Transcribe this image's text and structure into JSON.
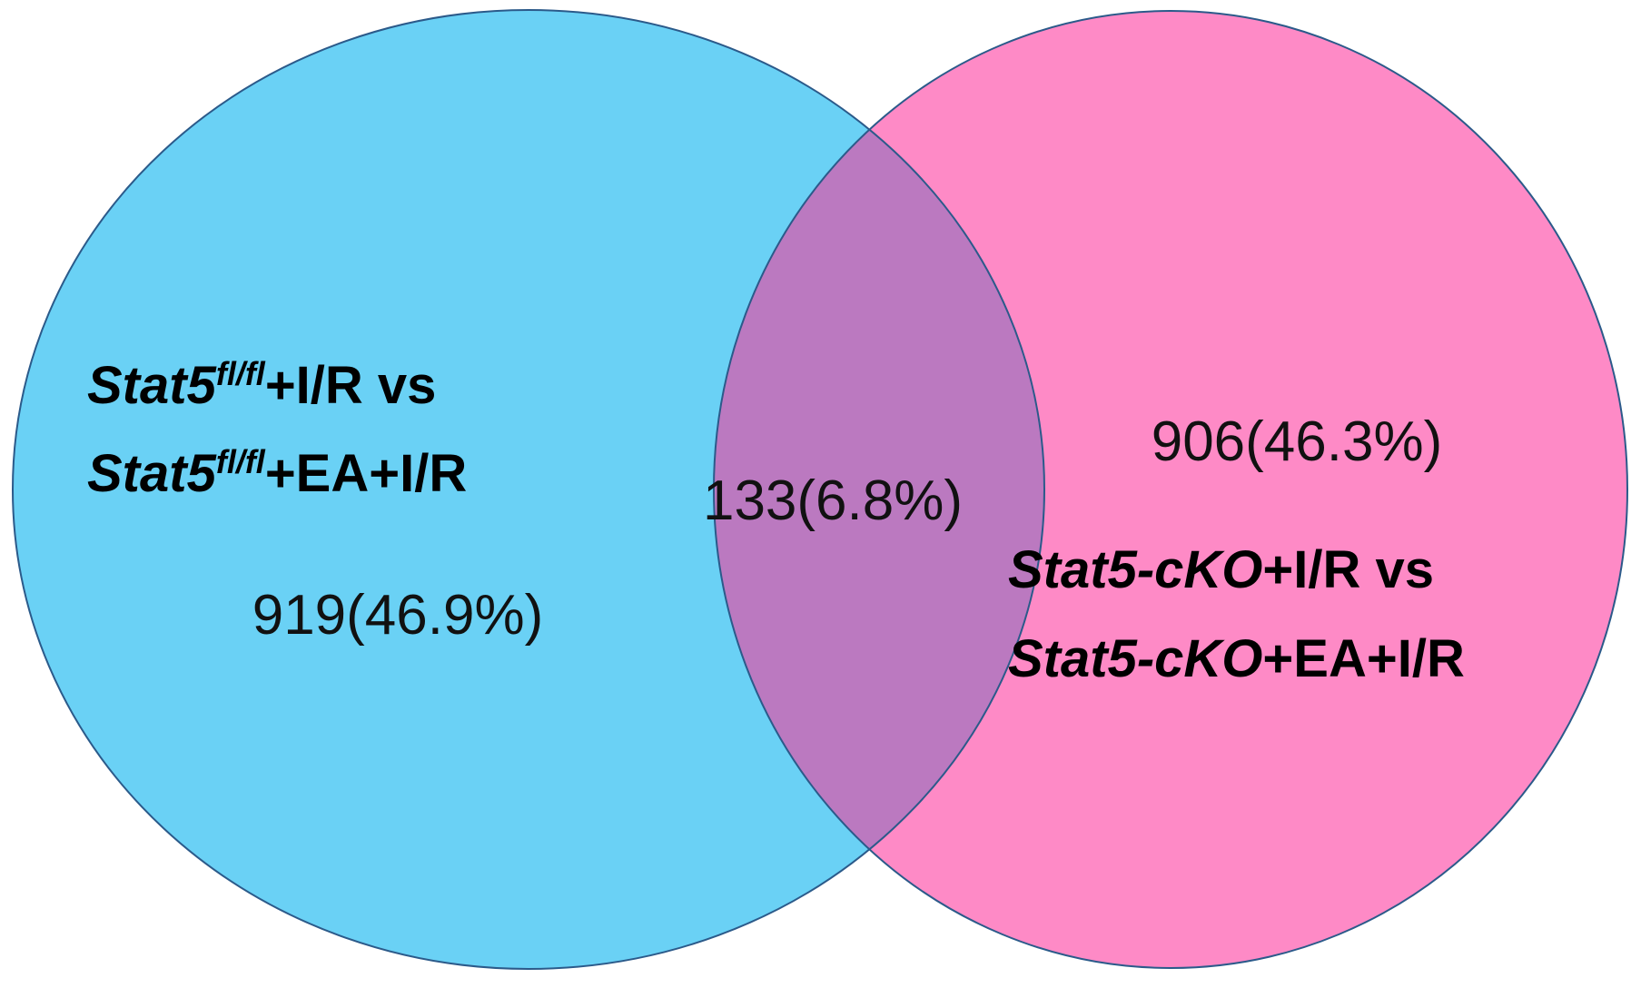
{
  "venn": {
    "sets": [
      {
        "id": "left",
        "color": "#6ad1f5",
        "stroke": "#2b5a8a",
        "label_line1": {
          "name": "Stat5",
          "sup": "fl/fl",
          "rest": "+I/R vs"
        },
        "label_line2": {
          "name": "Stat5",
          "sup": "fl/fl",
          "rest": "+EA+I/R"
        },
        "count": "919(46.9%)"
      },
      {
        "id": "right",
        "color": "#fe8ac6",
        "stroke": "#2b5a8a",
        "label_line1": {
          "name": "Stat5-cKO",
          "rest": "+I/R vs"
        },
        "label_line2": {
          "name": "Stat5-cKO",
          "rest": "+EA+I/R"
        },
        "count": "906(46.3%)"
      }
    ],
    "intersection": {
      "color": "#bb79c0",
      "count": "133(6.8%)"
    }
  }
}
